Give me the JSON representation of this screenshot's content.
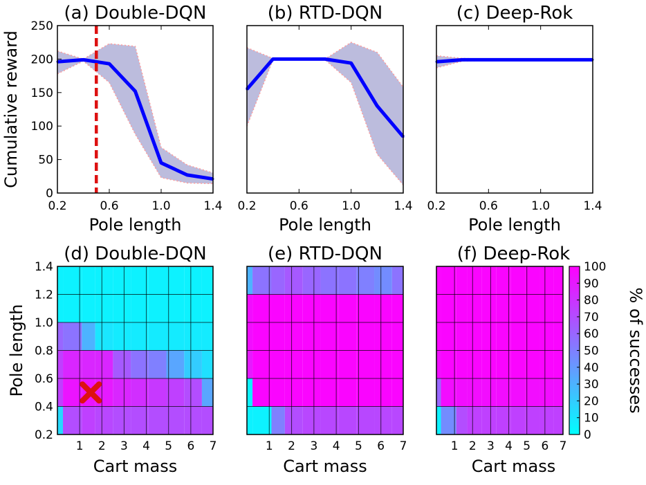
{
  "colors": {
    "line": "#0000ff",
    "band": "#bcbcdd",
    "band_edge": "#ff9b9b",
    "marker": "#dd1111",
    "cmap_low": "#00ffff",
    "cmap_high": "#ff00ff"
  },
  "chart_data": [
    {
      "type": "line",
      "title": "(a) Double-DQN",
      "xlabel": "Pole length",
      "ylabel": "Cumulative reward",
      "xlim": [
        0.2,
        1.4
      ],
      "ylim": [
        0,
        250
      ],
      "xticks": [
        "0.2",
        "0.6",
        "1.0",
        "1.4"
      ],
      "yticks": [
        "0",
        "50",
        "100",
        "150",
        "200",
        "250"
      ],
      "x": [
        0.2,
        0.4,
        0.6,
        0.8,
        1.0,
        1.2,
        1.4
      ],
      "mean": [
        196,
        199,
        193,
        152,
        45,
        27,
        21
      ],
      "upper": [
        212,
        200,
        223,
        219,
        68,
        42,
        30
      ],
      "lower": [
        178,
        197,
        165,
        88,
        23,
        15,
        14
      ],
      "vline": 0.5
    },
    {
      "type": "line",
      "title": "(b) RTD-DQN",
      "xlabel": "Pole length",
      "ylabel": "",
      "xlim": [
        0.2,
        1.4
      ],
      "ylim": [
        0,
        250
      ],
      "xticks": [
        "0.2",
        "0.6",
        "1.0",
        "1.4"
      ],
      "yticks": [],
      "x": [
        0.2,
        0.4,
        0.6,
        0.8,
        1.0,
        1.2,
        1.4
      ],
      "mean": [
        155,
        200,
        200,
        200,
        194,
        130,
        84
      ],
      "upper": [
        217,
        201,
        201,
        200,
        225,
        210,
        158
      ],
      "lower": [
        100,
        199,
        199,
        199,
        165,
        58,
        12
      ]
    },
    {
      "type": "line",
      "title": "(c) Deep-Rok",
      "xlabel": "Pole length",
      "ylabel": "",
      "xlim": [
        0.2,
        1.4
      ],
      "ylim": [
        0,
        250
      ],
      "xticks": [
        "0.2",
        "0.6",
        "1.0",
        "1.4"
      ],
      "yticks": [],
      "x": [
        0.2,
        0.4,
        0.6,
        0.8,
        1.0,
        1.2,
        1.4
      ],
      "mean": [
        196,
        199,
        199,
        199,
        199,
        199,
        199
      ],
      "upper": [
        205,
        201,
        200,
        200,
        200,
        200,
        200
      ],
      "lower": [
        187,
        197,
        198,
        198,
        198,
        198,
        198
      ]
    },
    {
      "type": "heatmap",
      "title": "(d) Double-DQN",
      "xlabel": "Cart mass",
      "ylabel": "Pole length",
      "xlim": [
        0,
        7
      ],
      "ylim": [
        0.2,
        1.4
      ],
      "xticks": [
        "1",
        "2",
        "3",
        "4",
        "5",
        "6",
        "7"
      ],
      "yticks": [
        "0.2",
        "0.4",
        "0.6",
        "0.8",
        "1.0",
        "1.2",
        "1.4"
      ],
      "row_edges": [
        0.2,
        0.4,
        0.6,
        0.8,
        1.0,
        1.2,
        1.4
      ],
      "col_edges": [
        0,
        0.25,
        1.1,
        1.7,
        2.5,
        3.3,
        4.1,
        4.9,
        5.7,
        6.5,
        7.0
      ],
      "values": [
        [
          15,
          70,
          75,
          72,
          70,
          70,
          70,
          70,
          70,
          70
        ],
        [
          75,
          92,
          92,
          90,
          85,
          82,
          78,
          75,
          70,
          35
        ],
        [
          75,
          85,
          85,
          85,
          65,
          55,
          50,
          35,
          20,
          12
        ],
        [
          60,
          55,
          30,
          10,
          8,
          8,
          8,
          8,
          8,
          8
        ],
        [
          5,
          5,
          5,
          5,
          5,
          5,
          5,
          5,
          5,
          5
        ],
        [
          5,
          5,
          5,
          5,
          5,
          5,
          5,
          5,
          5,
          5
        ]
      ],
      "marker": {
        "x": 1.5,
        "y": 0.5
      }
    },
    {
      "type": "heatmap",
      "title": "(e) RTD-DQN",
      "xlabel": "Cart mass",
      "ylabel": "",
      "xlim": [
        0,
        7
      ],
      "ylim": [
        0.2,
        1.4
      ],
      "xticks": [
        "1",
        "2",
        "3",
        "4",
        "5",
        "6",
        "7"
      ],
      "yticks": [],
      "row_edges": [
        0.2,
        0.4,
        0.6,
        0.8,
        1.0,
        1.2,
        1.4
      ],
      "col_edges": [
        0,
        0.25,
        1.1,
        1.7,
        2.5,
        3.3,
        4.1,
        4.9,
        5.7,
        6.5,
        7.0
      ],
      "values": [
        [
          5,
          5,
          50,
          70,
          72,
          72,
          72,
          72,
          72,
          72
        ],
        [
          5,
          98,
          98,
          98,
          98,
          98,
          98,
          98,
          98,
          98
        ],
        [
          90,
          98,
          98,
          98,
          98,
          98,
          98,
          98,
          98,
          98
        ],
        [
          95,
          98,
          98,
          98,
          98,
          98,
          98,
          98,
          98,
          98
        ],
        [
          95,
          98,
          98,
          98,
          98,
          98,
          98,
          98,
          98,
          98
        ],
        [
          30,
          55,
          60,
          65,
          60,
          55,
          55,
          50,
          45,
          55
        ]
      ]
    },
    {
      "type": "heatmap",
      "title": "(f) Deep-Rok",
      "xlabel": "Cart mass",
      "ylabel": "",
      "xlim": [
        0,
        7
      ],
      "ylim": [
        0.2,
        1.4
      ],
      "xticks": [
        "1",
        "2",
        "3",
        "4",
        "5",
        "6",
        "7"
      ],
      "yticks": [],
      "row_edges": [
        0.2,
        0.4,
        0.6,
        0.8,
        1.0,
        1.2,
        1.4
      ],
      "col_edges": [
        0,
        0.25,
        1.1,
        1.7,
        2.5,
        3.3,
        4.1,
        4.9,
        5.7,
        6.5,
        7.0
      ],
      "values": [
        [
          5,
          45,
          70,
          75,
          75,
          75,
          75,
          75,
          75,
          75
        ],
        [
          60,
          95,
          95,
          95,
          95,
          95,
          95,
          95,
          95,
          95
        ],
        [
          95,
          98,
          98,
          98,
          98,
          98,
          98,
          98,
          98,
          98
        ],
        [
          98,
          98,
          98,
          98,
          98,
          98,
          98,
          98,
          98,
          98
        ],
        [
          98,
          98,
          98,
          98,
          98,
          98,
          98,
          98,
          98,
          98
        ],
        [
          98,
          98,
          98,
          98,
          98,
          98,
          98,
          98,
          98,
          98
        ]
      ]
    }
  ],
  "colorbar": {
    "label": "% of successes",
    "ticks": [
      "0",
      "10",
      "20",
      "30",
      "40",
      "50",
      "60",
      "70",
      "80",
      "90",
      "100"
    ],
    "range": [
      0,
      100
    ]
  }
}
